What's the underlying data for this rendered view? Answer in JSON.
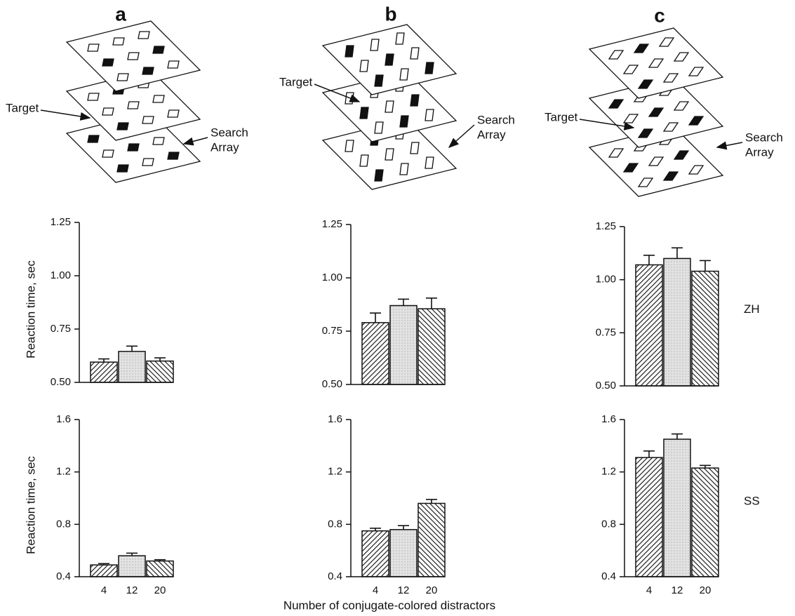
{
  "panels": [
    {
      "label": "a",
      "target": "Target",
      "search_array": [
        "Search",
        "Array"
      ]
    },
    {
      "label": "b",
      "target": "Target",
      "search_array": [
        "Search",
        "Array"
      ]
    },
    {
      "label": "c",
      "target": "Target",
      "search_array": [
        "Search",
        "Array"
      ]
    }
  ],
  "chart_data": [
    {
      "type": "bar",
      "ylabel": "Reaction time, sec",
      "categories": [
        null,
        null,
        null
      ],
      "values": [
        0.595,
        0.645,
        0.6
      ],
      "errors": [
        0.015,
        0.025,
        0.015
      ],
      "ylim": [
        0.5,
        1.25
      ],
      "yticks": [
        1.25,
        {
          "value": 1,
          "label": "1.00"
        },
        0.75,
        {
          "value": 0.5,
          "label": "0.50"
        }
      ]
    },
    {
      "type": "bar",
      "categories": [
        null,
        null,
        null
      ],
      "values": [
        0.79,
        0.87,
        0.855
      ],
      "errors": [
        0.045,
        0.03,
        0.05
      ],
      "ylim": [
        0.5,
        1.25
      ],
      "yticks": [
        1.25,
        {
          "value": 1,
          "label": "1.00"
        },
        0.75,
        {
          "value": 0.5,
          "label": "0.50"
        }
      ]
    },
    {
      "type": "bar",
      "row_label": "ZH",
      "categories": [
        null,
        null,
        null
      ],
      "values": [
        1.07,
        1.1,
        1.04
      ],
      "errors": [
        0.045,
        0.05,
        0.05
      ],
      "ylim": [
        0.5,
        1.25
      ],
      "yticks": [
        1.25,
        {
          "value": 1,
          "label": "1.00"
        },
        0.75,
        {
          "value": 0.5,
          "label": "0.50"
        }
      ]
    },
    {
      "type": "bar",
      "ylabel": "Reaction time, sec",
      "categories": [
        "4",
        "12",
        "20"
      ],
      "values": [
        0.49,
        0.56,
        0.52
      ],
      "errors": [
        0.01,
        0.02,
        0.01
      ],
      "ylim": [
        0.4,
        1.6
      ],
      "yticks": [
        1.6,
        1.2,
        0.8,
        0.4
      ]
    },
    {
      "type": "bar",
      "xlabel": "Number of conjugate-colored distractors",
      "categories": [
        "4",
        "12",
        "20"
      ],
      "values": [
        0.75,
        0.76,
        0.96
      ],
      "errors": [
        0.02,
        0.03,
        0.03
      ],
      "ylim": [
        0.4,
        1.6
      ],
      "yticks": [
        1.6,
        1.2,
        0.8,
        0.4
      ]
    },
    {
      "type": "bar",
      "row_label": "SS",
      "categories": [
        "4",
        "12",
        "20"
      ],
      "values": [
        1.31,
        1.45,
        1.23
      ],
      "errors": [
        0.05,
        0.04,
        0.02
      ],
      "ylim": [
        0.4,
        1.6
      ],
      "yticks": [
        1.6,
        1.2,
        0.8,
        0.4
      ]
    }
  ]
}
